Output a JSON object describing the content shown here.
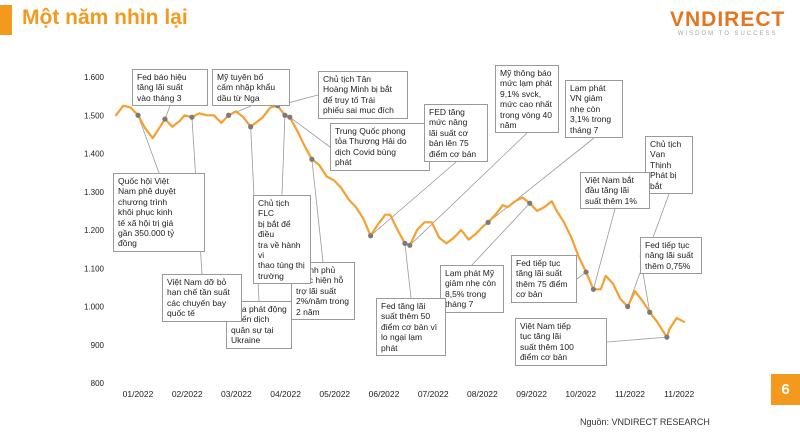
{
  "header": {
    "title": "Một năm nhìn lại",
    "brand_name": "VNDIRECT",
    "brand_tagline": "WISDOM TO SUCCESS"
  },
  "footer": {
    "source": "Nguồn: VNDIRECT RESEARCH",
    "page_number": "6"
  },
  "colors": {
    "accent": "#f39a1e",
    "line": "#f5a030",
    "marker": "#7b7b7b"
  },
  "chart_data": {
    "type": "line",
    "title": "",
    "xlabel": "",
    "ylabel": "",
    "ylim": [
      800,
      1600
    ],
    "yticks": [
      "800",
      "900",
      "1.000",
      "1.100",
      "1.200",
      "1.300",
      "1.400",
      "1.500",
      "1.600"
    ],
    "xtick_labels": [
      "01/2022",
      "02/2022",
      "03/2022",
      "04/2022",
      "05/2022",
      "06/2022",
      "07/2022",
      "08/2022",
      "09/2022",
      "10/2022",
      "11/2022",
      "11/2022"
    ],
    "grid": false,
    "legend": "none",
    "series": [
      {
        "values": [
          [
            0.0,
            1500
          ],
          [
            0.15,
            1525
          ],
          [
            0.3,
            1520
          ],
          [
            0.45,
            1500
          ],
          [
            0.6,
            1465
          ],
          [
            0.75,
            1440
          ],
          [
            0.9,
            1470
          ],
          [
            1.0,
            1490
          ],
          [
            1.15,
            1470
          ],
          [
            1.3,
            1485
          ],
          [
            1.4,
            1500
          ],
          [
            1.55,
            1495
          ],
          [
            1.7,
            1505
          ],
          [
            1.85,
            1500
          ],
          [
            2.0,
            1500
          ],
          [
            2.15,
            1480
          ],
          [
            2.3,
            1500
          ],
          [
            2.45,
            1510
          ],
          [
            2.6,
            1495
          ],
          [
            2.75,
            1470
          ],
          [
            2.85,
            1480
          ],
          [
            3.0,
            1495
          ],
          [
            3.15,
            1520
          ],
          [
            3.3,
            1525
          ],
          [
            3.45,
            1500
          ],
          [
            3.55,
            1495
          ],
          [
            3.7,
            1460
          ],
          [
            3.85,
            1420
          ],
          [
            4.0,
            1385
          ],
          [
            4.15,
            1370
          ],
          [
            4.3,
            1340
          ],
          [
            4.45,
            1330
          ],
          [
            4.6,
            1310
          ],
          [
            4.75,
            1280
          ],
          [
            4.9,
            1260
          ],
          [
            5.05,
            1230
          ],
          [
            5.2,
            1185
          ],
          [
            5.35,
            1215
          ],
          [
            5.5,
            1240
          ],
          [
            5.6,
            1240
          ],
          [
            5.75,
            1200
          ],
          [
            5.9,
            1165
          ],
          [
            6.0,
            1160
          ],
          [
            6.15,
            1200
          ],
          [
            6.3,
            1220
          ],
          [
            6.45,
            1220
          ],
          [
            6.6,
            1180
          ],
          [
            6.75,
            1165
          ],
          [
            6.9,
            1180
          ],
          [
            7.05,
            1200
          ],
          [
            7.2,
            1175
          ],
          [
            7.35,
            1190
          ],
          [
            7.5,
            1210
          ],
          [
            7.6,
            1220
          ],
          [
            7.75,
            1240
          ],
          [
            7.9,
            1265
          ],
          [
            8.0,
            1260
          ],
          [
            8.15,
            1275
          ],
          [
            8.3,
            1285
          ],
          [
            8.45,
            1270
          ],
          [
            8.6,
            1250
          ],
          [
            8.75,
            1260
          ],
          [
            8.9,
            1275
          ],
          [
            9.0,
            1250
          ],
          [
            9.15,
            1220
          ],
          [
            9.3,
            1180
          ],
          [
            9.45,
            1130
          ],
          [
            9.6,
            1090
          ],
          [
            9.75,
            1045
          ],
          [
            9.9,
            1045
          ],
          [
            10.0,
            1080
          ],
          [
            10.15,
            1060
          ],
          [
            10.3,
            1020
          ],
          [
            10.45,
            1000
          ],
          [
            10.6,
            1040
          ],
          [
            10.75,
            1015
          ],
          [
            10.9,
            985
          ],
          [
            11.05,
            960
          ],
          [
            11.2,
            930
          ],
          [
            11.25,
            920
          ],
          [
            11.3,
            940
          ],
          [
            11.45,
            970
          ],
          [
            11.6,
            960
          ]
        ]
      }
    ],
    "annotations": [
      "Quốc hội Việt\nNam phê duyệt\nchương trình\nkhôi phục kinh\ntế xã hội trị giá\ngần 350.000 tỷ\nđồng",
      "Fed báo hiệu\ntăng lãi suất\nvào tháng 3",
      "Mỹ tuyên bố\ncấm nhập khẩu\ndầu từ Nga",
      "Chủ tịch Tân\nHoàng Minh bị bắt\nđể truy tố Trái\nphiếu sai mục đích",
      "Trung Quốc phong\ntỏa Thượng Hải do\ndịch Covid bùng\nphát",
      "FED tăng\nmức nâng\nlãi suất cơ\nbản lên 75\nđiểm cơ bản",
      "Mỹ thông báo\nmức lạm phát\n9,1% svck,\nmức cao nhất\ntrong vòng 40\nnăm",
      "Lạm phát\nVN giảm\nnhẹ còn\n3,1% trong\ntháng 7",
      "Chủ tịch\nVạn Thịnh\nPhát bị bắt",
      "Việt Nam bắt\nđầu tăng lãi\nsuất thêm 1%",
      "Fed tiếp tục\nnâng lãi suất\nthêm 0,75%",
      "Việt Nam tiếp\ntục tăng lãi\nsuất thêm 100\nđiểm cơ bản",
      "Fed tiếp tục\ntăng lãi suất\nthêm 75 điểm\ncơ bản",
      "Lạm phát Mỹ\ngiảm nhẹ còn\n8,5% trong\ntháng 7",
      "Fed tăng lãi\nsuất thêm 50\nđiểm cơ bản vì\nlo ngại lạm\nphát",
      "Chính phủ\nthực hiện hỗ\ntrợ lãi suất\n2%/năm trong\n2 năm",
      "Chủ tịch FLC\nbị bắt để điều\ntra về hành vi\nthao túng thị\ntrường",
      "Nga phát động\nchiến dịch\nquân sự tại\nUkraine",
      "Việt Nam dỡ bỏ\nhạn chế tần suất\ncác chuyến bay\nquốc tế"
    ]
  }
}
